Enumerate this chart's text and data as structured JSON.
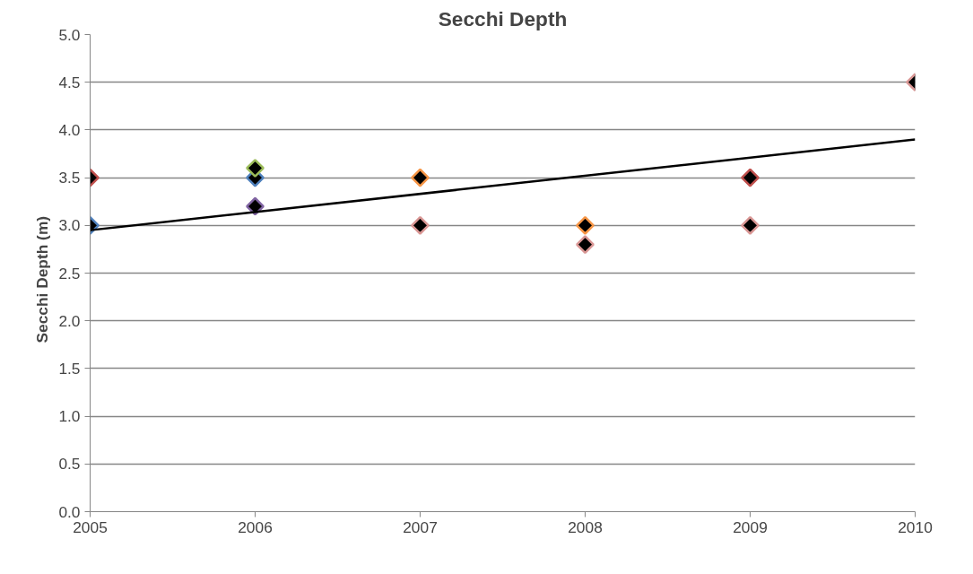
{
  "chart_data": {
    "type": "scatter",
    "title": "Secchi Depth",
    "ylabel": "Secchi Depth    (m)",
    "marker": "diamond",
    "grid": "y",
    "xlim": [
      2005,
      2010
    ],
    "xticks": [
      2005,
      2006,
      2007,
      2008,
      2009,
      2010
    ],
    "ylim": [
      0,
      5
    ],
    "yticks": [
      {
        "value": 0,
        "label": "0.0"
      },
      {
        "value": 0.5,
        "label": "0.5"
      },
      {
        "value": 1,
        "label": "1.0"
      },
      {
        "value": 1.5,
        "label": "1.5"
      },
      {
        "value": 2,
        "label": "2.0"
      },
      {
        "value": 2.5,
        "label": "2.5"
      },
      {
        "value": 3,
        "label": "3.0"
      },
      {
        "value": 3.5,
        "label": "3.5"
      },
      {
        "value": 4,
        "label": "4.0"
      },
      {
        "value": 4.5,
        "label": "4.5"
      },
      {
        "value": 5,
        "label": "5.0"
      }
    ],
    "series": [
      {
        "color": "#4f81bd",
        "x": [
          2005,
          2006
        ],
        "values": [
          3.0,
          3.5
        ]
      },
      {
        "color": "#c0504d",
        "x": [
          2005,
          2009
        ],
        "values": [
          3.5,
          3.5
        ]
      },
      {
        "color": "#9bbb59",
        "x": [
          2006
        ],
        "values": [
          3.6
        ]
      },
      {
        "color": "#8064a2",
        "x": [
          2006
        ],
        "values": [
          3.2
        ]
      },
      {
        "color": "#f79646",
        "x": [
          2007,
          2008
        ],
        "values": [
          3.5,
          3.0
        ]
      },
      {
        "color": "#d99694",
        "x": [
          2007,
          2008,
          2009,
          2010
        ],
        "values": [
          3.0,
          2.8,
          3.0,
          4.5
        ]
      },
      {
        "type": "line",
        "marker": "none",
        "color": "#000000",
        "x": [
          2005,
          2010
        ],
        "values": [
          2.95,
          3.9
        ]
      }
    ]
  }
}
